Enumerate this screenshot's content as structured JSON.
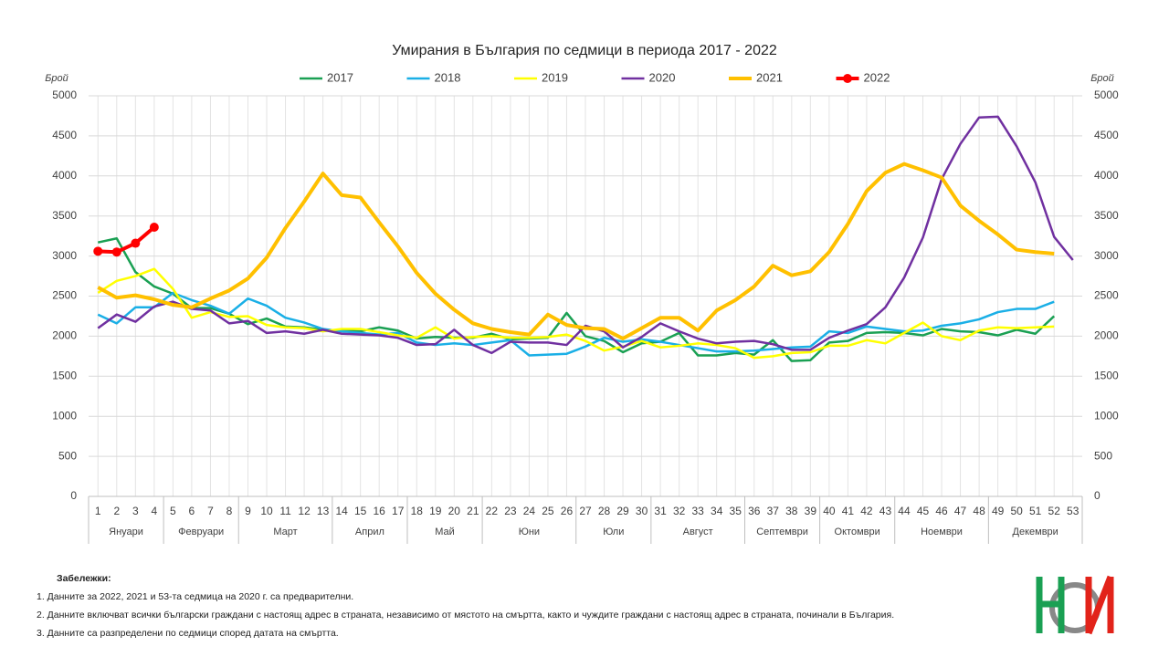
{
  "chart_data": {
    "type": "line",
    "title": "Умирания в България по седмици в периода 2017 - 2022",
    "ylabel": "Брой",
    "y2label": "Брой",
    "x": [
      1,
      2,
      3,
      4,
      5,
      6,
      7,
      8,
      9,
      10,
      11,
      12,
      13,
      14,
      15,
      16,
      17,
      18,
      19,
      20,
      21,
      22,
      23,
      24,
      25,
      26,
      27,
      28,
      29,
      30,
      31,
      32,
      33,
      34,
      35,
      36,
      37,
      38,
      39,
      40,
      41,
      42,
      43,
      44,
      45,
      46,
      47,
      48,
      49,
      50,
      51,
      52,
      53
    ],
    "xlim": [
      0.5,
      53.5
    ],
    "xticks": [
      1,
      2,
      3,
      4,
      5,
      6,
      7,
      8,
      9,
      10,
      11,
      12,
      13,
      14,
      15,
      16,
      17,
      18,
      19,
      20,
      21,
      22,
      23,
      24,
      25,
      26,
      27,
      28,
      29,
      30,
      31,
      32,
      33,
      34,
      35,
      36,
      37,
      38,
      39,
      40,
      41,
      42,
      43,
      44,
      45,
      46,
      47,
      48,
      49,
      50,
      51,
      52,
      53
    ],
    "ylim": [
      0,
      5000
    ],
    "yticks": [
      0,
      500,
      1000,
      1500,
      2000,
      2500,
      3000,
      3500,
      4000,
      4500,
      5000
    ],
    "y2lim": [
      0,
      5000
    ],
    "y2ticks": [
      0,
      500,
      1000,
      1500,
      2000,
      2500,
      3000,
      3500,
      4000,
      4500,
      5000
    ],
    "grid": true,
    "months": [
      {
        "label": "Януари",
        "from": 0.5,
        "to": 4.5
      },
      {
        "label": "Февруари",
        "from": 4.5,
        "to": 8.5
      },
      {
        "label": "Март",
        "from": 8.5,
        "to": 13.5
      },
      {
        "label": "Април",
        "from": 13.5,
        "to": 17.5
      },
      {
        "label": "Май",
        "from": 17.5,
        "to": 21.5
      },
      {
        "label": "Юни",
        "from": 21.5,
        "to": 26.5
      },
      {
        "label": "Юли",
        "from": 26.5,
        "to": 30.5
      },
      {
        "label": "Август",
        "from": 30.5,
        "to": 35.5
      },
      {
        "label": "Септември",
        "from": 35.5,
        "to": 39.5
      },
      {
        "label": "Октомври",
        "from": 39.5,
        "to": 43.5
      },
      {
        "label": "Ноември",
        "from": 43.5,
        "to": 48.5
      },
      {
        "label": "Декември",
        "from": 48.5,
        "to": 53.5
      }
    ],
    "series": [
      {
        "name": "2017",
        "color": "#1aa053",
        "width": 2.5,
        "values": [
          3170,
          3220,
          2800,
          2620,
          2530,
          2350,
          2350,
          2280,
          2150,
          2220,
          2120,
          2110,
          2080,
          2070,
          2060,
          2110,
          2070,
          1970,
          1990,
          1980,
          1980,
          2030,
          1960,
          1970,
          1980,
          2290,
          2000,
          1940,
          1800,
          1910,
          1930,
          2040,
          1760,
          1760,
          1790,
          1770,
          1950,
          1690,
          1700,
          1920,
          1940,
          2040,
          2050,
          2040,
          2010,
          2090,
          2060,
          2050,
          2010,
          2080,
          2030,
          2250,
          null
        ]
      },
      {
        "name": "2018",
        "color": "#1aafe6",
        "width": 2.5,
        "values": [
          2270,
          2160,
          2360,
          2360,
          2540,
          2450,
          2380,
          2280,
          2470,
          2380,
          2230,
          2170,
          2090,
          2060,
          2040,
          2020,
          2040,
          1920,
          1890,
          1910,
          1890,
          1920,
          1950,
          1760,
          1770,
          1780,
          1870,
          1980,
          1930,
          1960,
          1930,
          1890,
          1850,
          1810,
          1810,
          1820,
          1840,
          1860,
          1870,
          2060,
          2040,
          2120,
          2090,
          2060,
          2070,
          2130,
          2160,
          2210,
          2300,
          2340,
          2340,
          2430,
          null
        ]
      },
      {
        "name": "2019",
        "color": "#ffff00",
        "width": 2.5,
        "values": [
          2540,
          2690,
          2750,
          2840,
          2590,
          2230,
          2300,
          2240,
          2250,
          2140,
          2110,
          2100,
          2060,
          2090,
          2090,
          2050,
          2010,
          1980,
          2110,
          1970,
          1990,
          2000,
          1980,
          1980,
          1990,
          2020,
          1940,
          1820,
          1870,
          1940,
          1860,
          1880,
          1910,
          1890,
          1850,
          1730,
          1750,
          1790,
          1800,
          1880,
          1880,
          1950,
          1910,
          2040,
          2170,
          2000,
          1950,
          2070,
          2110,
          2100,
          2110,
          2120,
          null
        ]
      },
      {
        "name": "2020",
        "color": "#7030a0",
        "width": 2.5,
        "values": [
          2100,
          2270,
          2180,
          2370,
          2430,
          2340,
          2320,
          2160,
          2190,
          2040,
          2060,
          2030,
          2080,
          2030,
          2020,
          2010,
          1980,
          1890,
          1900,
          2080,
          1890,
          1790,
          1930,
          1920,
          1920,
          1890,
          2130,
          2060,
          1860,
          1990,
          2160,
          2060,
          1970,
          1910,
          1930,
          1940,
          1900,
          1830,
          1830,
          1980,
          2070,
          2150,
          2360,
          2730,
          3230,
          3960,
          4400,
          4730,
          4740,
          4370,
          3920,
          3240,
          2950
        ]
      },
      {
        "name": "2021",
        "color": "#ffc000",
        "width": 4,
        "values": [
          2610,
          2480,
          2510,
          2460,
          2390,
          2360,
          2470,
          2570,
          2720,
          2980,
          3350,
          3680,
          4030,
          3760,
          3730,
          3420,
          3120,
          2790,
          2530,
          2330,
          2160,
          2090,
          2050,
          2020,
          2270,
          2140,
          2100,
          2090,
          1970,
          2100,
          2230,
          2230,
          2070,
          2320,
          2450,
          2620,
          2880,
          2760,
          2810,
          3050,
          3400,
          3810,
          4040,
          4150,
          4070,
          3980,
          3630,
          3440,
          3270,
          3080,
          3050,
          3030,
          null
        ]
      },
      {
        "name": "2022",
        "color": "#ff0000",
        "width": 4,
        "markers": true,
        "values": [
          3060,
          3050,
          3160,
          3360,
          null,
          null,
          null,
          null,
          null,
          null,
          null,
          null,
          null,
          null,
          null,
          null,
          null,
          null,
          null,
          null,
          null,
          null,
          null,
          null,
          null,
          null,
          null,
          null,
          null,
          null,
          null,
          null,
          null,
          null,
          null,
          null,
          null,
          null,
          null,
          null,
          null,
          null,
          null,
          null,
          null,
          null,
          null,
          null,
          null,
          null,
          null,
          null,
          null
        ]
      }
    ]
  },
  "notes": {
    "title": "Забележки:",
    "items": [
      "1. Данните за 2022, 2021 и 53-та седмица на 2020 г. са предварителни.",
      "2. Данните включват всички български граждани с настоящ адрес в страната, независимо от мястото на смъртта, както и чуждите граждани с настоящ адрес в страната, починали в България.",
      "3. Данните са разпределени по седмици според датата на смъртта."
    ]
  }
}
